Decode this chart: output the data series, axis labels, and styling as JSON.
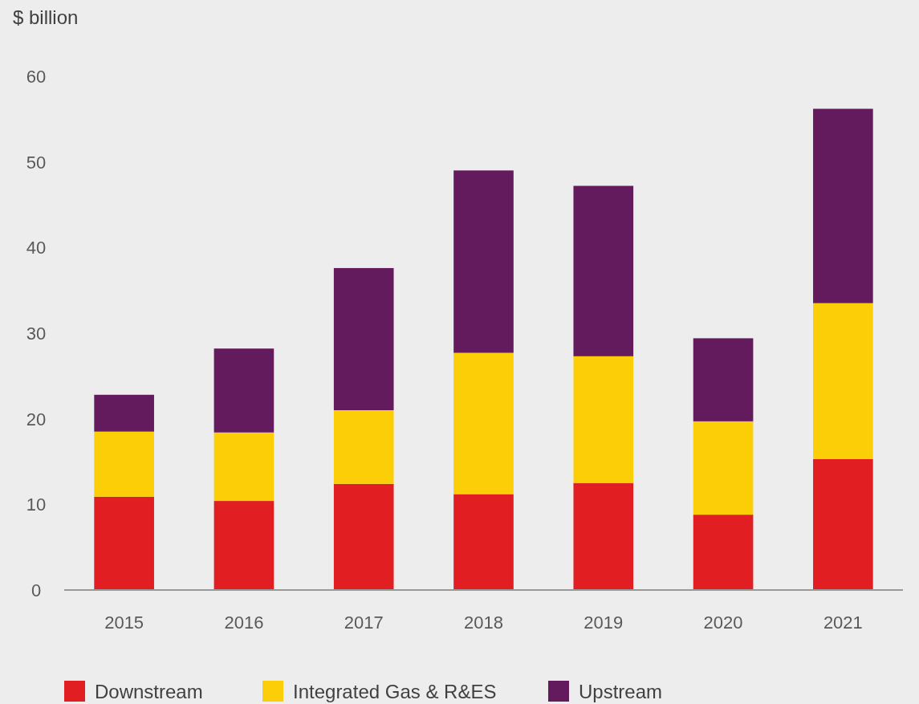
{
  "chart_data": {
    "type": "bar",
    "stacked": true,
    "ylabel": "$ billion",
    "categories": [
      "2015",
      "2016",
      "2017",
      "2018",
      "2019",
      "2020",
      "2021"
    ],
    "series": [
      {
        "name": "Downstream",
        "color": "#e11e22",
        "values": [
          10.9,
          10.4,
          12.4,
          11.2,
          12.5,
          8.8,
          15.3
        ]
      },
      {
        "name": "Integrated Gas & R&ES",
        "color": "#fbce07",
        "values": [
          7.6,
          8.0,
          8.6,
          16.5,
          14.8,
          10.9,
          18.2
        ]
      },
      {
        "name": "Upstream",
        "color": "#641b5e",
        "values": [
          4.3,
          9.8,
          16.6,
          21.3,
          19.9,
          9.7,
          22.7
        ]
      }
    ],
    "ylim": [
      0,
      60
    ],
    "yticks": [
      0,
      10,
      20,
      30,
      40,
      50,
      60
    ],
    "grid": false,
    "legend": "bottom"
  }
}
